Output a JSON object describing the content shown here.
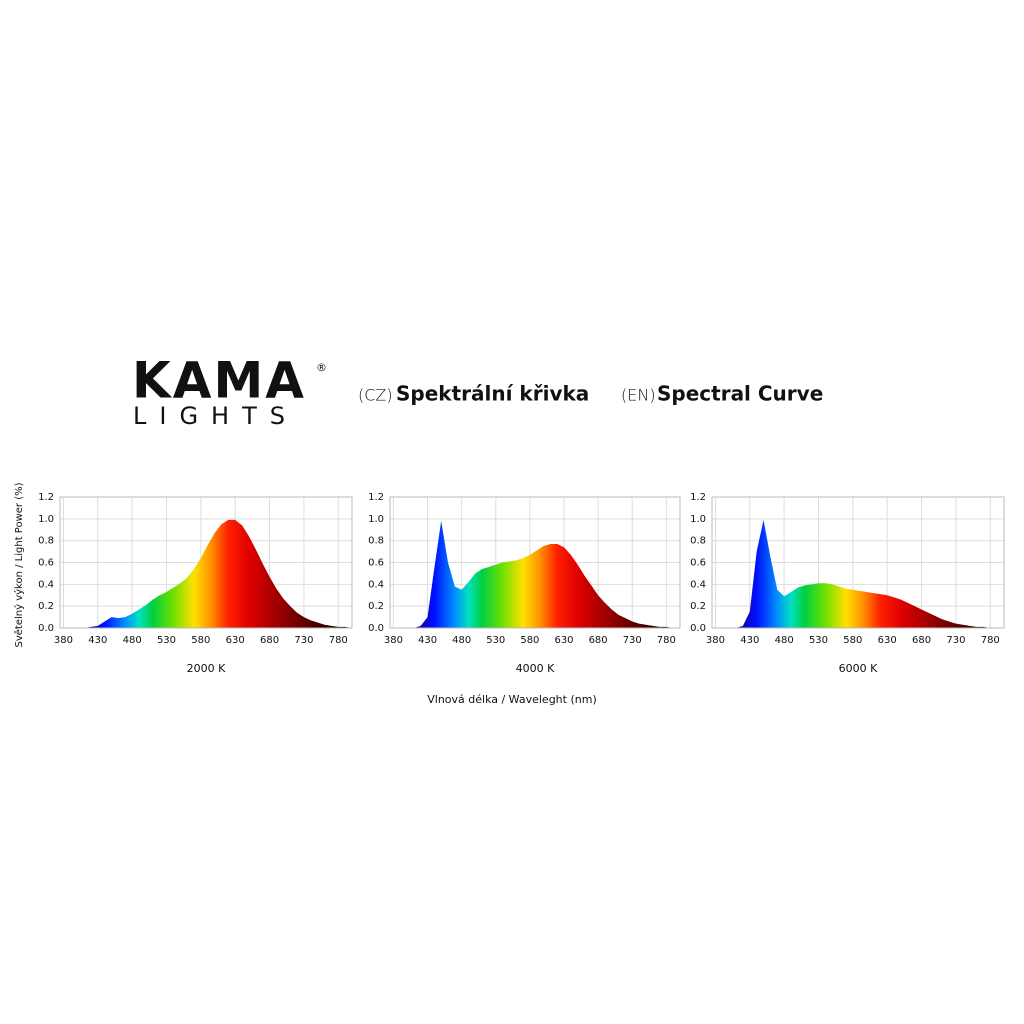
{
  "logo": {
    "name": "KAMA",
    "registered": "®",
    "sub": "LIGHTS"
  },
  "header": {
    "cz_tag": "(CZ)",
    "cz_title": "Spektrální křivka",
    "en_tag": "(EN)",
    "en_title": "Spectral Curve"
  },
  "y_axis_label": "Světelný výkon / Light Power (%)",
  "x_axis_label": "Vlnová délka / Waveleght (nm)",
  "chart_data": [
    {
      "type": "area",
      "title": "2000 K",
      "x": [
        380,
        390,
        400,
        410,
        420,
        430,
        440,
        450,
        460,
        470,
        480,
        490,
        500,
        510,
        520,
        530,
        540,
        550,
        560,
        570,
        580,
        590,
        600,
        610,
        620,
        630,
        640,
        650,
        660,
        670,
        680,
        690,
        700,
        710,
        720,
        730,
        740,
        750,
        760,
        770,
        780,
        790,
        800
      ],
      "values": [
        0,
        0,
        0,
        0,
        0.01,
        0.02,
        0.06,
        0.1,
        0.09,
        0.1,
        0.13,
        0.17,
        0.21,
        0.26,
        0.3,
        0.33,
        0.37,
        0.41,
        0.46,
        0.54,
        0.64,
        0.76,
        0.87,
        0.95,
        0.99,
        0.99,
        0.94,
        0.84,
        0.72,
        0.59,
        0.47,
        0.36,
        0.27,
        0.2,
        0.14,
        0.1,
        0.07,
        0.05,
        0.03,
        0.02,
        0.01,
        0.01,
        0
      ],
      "xlim": [
        375,
        800
      ],
      "xticks": [
        380,
        430,
        480,
        530,
        580,
        630,
        680,
        730,
        780
      ],
      "ylim": [
        0,
        1.2
      ],
      "yticks": [
        {
          "value": 0,
          "label": "0.0"
        },
        0.2,
        0.4,
        0.6,
        0.8,
        {
          "value": 1,
          "label": "1.0"
        },
        1.2
      ],
      "grid": true,
      "fill": "spectrum"
    },
    {
      "type": "area",
      "title": "4000 K",
      "x": [
        380,
        390,
        400,
        410,
        420,
        430,
        440,
        450,
        460,
        470,
        480,
        490,
        500,
        510,
        520,
        530,
        540,
        550,
        560,
        570,
        580,
        590,
        600,
        610,
        620,
        630,
        640,
        650,
        660,
        670,
        680,
        690,
        700,
        710,
        720,
        730,
        740,
        750,
        760,
        770,
        780,
        790,
        800
      ],
      "values": [
        0,
        0,
        0,
        0,
        0.02,
        0.1,
        0.55,
        0.98,
        0.6,
        0.38,
        0.35,
        0.42,
        0.5,
        0.54,
        0.56,
        0.58,
        0.6,
        0.61,
        0.62,
        0.64,
        0.67,
        0.71,
        0.75,
        0.77,
        0.77,
        0.74,
        0.67,
        0.58,
        0.48,
        0.39,
        0.3,
        0.23,
        0.17,
        0.12,
        0.09,
        0.06,
        0.04,
        0.03,
        0.02,
        0.01,
        0.01,
        0,
        0
      ],
      "xlim": [
        375,
        800
      ],
      "xticks": [
        380,
        430,
        480,
        530,
        580,
        630,
        680,
        730,
        780
      ],
      "ylim": [
        0,
        1.2
      ],
      "yticks": [
        {
          "value": 0,
          "label": "0.0"
        },
        0.2,
        0.4,
        0.6,
        0.8,
        {
          "value": 1,
          "label": "1.0"
        },
        1.2
      ],
      "grid": true,
      "fill": "spectrum"
    },
    {
      "type": "area",
      "title": "6000 K",
      "x": [
        380,
        390,
        400,
        410,
        420,
        430,
        440,
        450,
        460,
        470,
        480,
        490,
        500,
        510,
        520,
        530,
        540,
        550,
        560,
        570,
        580,
        590,
        600,
        610,
        620,
        630,
        640,
        650,
        660,
        670,
        680,
        690,
        700,
        710,
        720,
        730,
        740,
        750,
        760,
        770,
        780,
        790,
        800
      ],
      "values": [
        0,
        0,
        0,
        0,
        0.02,
        0.15,
        0.7,
        0.99,
        0.65,
        0.35,
        0.29,
        0.33,
        0.37,
        0.39,
        0.4,
        0.41,
        0.41,
        0.4,
        0.38,
        0.36,
        0.35,
        0.34,
        0.33,
        0.32,
        0.31,
        0.3,
        0.28,
        0.26,
        0.23,
        0.2,
        0.17,
        0.14,
        0.11,
        0.08,
        0.06,
        0.04,
        0.03,
        0.02,
        0.01,
        0.01,
        0,
        0,
        0
      ],
      "xlim": [
        375,
        800
      ],
      "xticks": [
        380,
        430,
        480,
        530,
        580,
        630,
        680,
        730,
        780
      ],
      "ylim": [
        0,
        1.2
      ],
      "yticks": [
        {
          "value": 0,
          "label": "0.0"
        },
        0.2,
        0.4,
        0.6,
        0.8,
        {
          "value": 1,
          "label": "1.0"
        },
        1.2
      ],
      "grid": true,
      "fill": "spectrum"
    }
  ]
}
